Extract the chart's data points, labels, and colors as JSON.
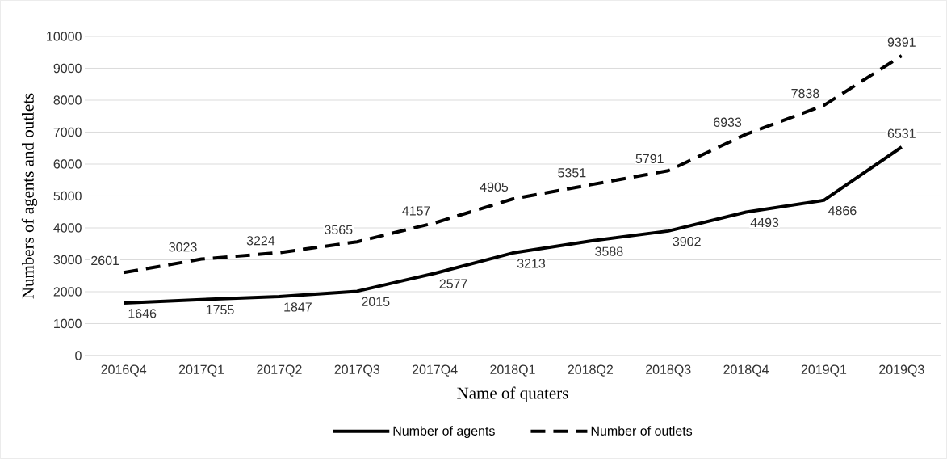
{
  "chart_data": {
    "type": "line",
    "xlabel": "Name of quaters",
    "ylabel": "Numbers of agents and outlets",
    "categories": [
      "2016Q4",
      "2017Q1",
      "2017Q2",
      "2017Q3",
      "2017Q4",
      "2018Q1",
      "2018Q2",
      "2018Q3",
      "2018Q4",
      "2019Q1",
      "2019Q3"
    ],
    "series": [
      {
        "name": "Number of agents",
        "color": "#000000",
        "line_style": "solid",
        "values": [
          1646,
          1755,
          1847,
          2015,
          2577,
          3213,
          3588,
          3902,
          4493,
          4866,
          6531
        ]
      },
      {
        "name": "Number of outlets",
        "color": "#000000",
        "line_style": "dashed",
        "values": [
          2601,
          3023,
          3224,
          3565,
          4157,
          4905,
          5351,
          5791,
          6933,
          7838,
          9391
        ]
      }
    ],
    "ylim": [
      0,
      10000
    ],
    "yticks": [
      0,
      1000,
      2000,
      3000,
      4000,
      5000,
      6000,
      7000,
      8000,
      9000,
      10000
    ],
    "grid": "y",
    "legend": "bottom",
    "data_labels": true
  }
}
